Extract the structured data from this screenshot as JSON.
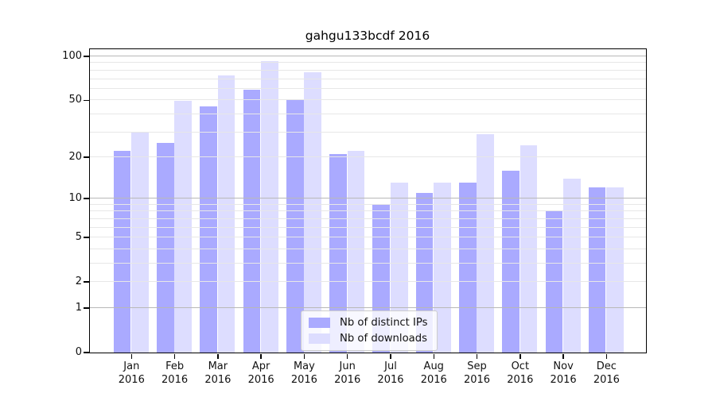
{
  "chart_data": {
    "type": "bar",
    "title": "gahgu133bcdf 2016",
    "x": {
      "months": [
        "Jan",
        "Feb",
        "Mar",
        "Apr",
        "May",
        "Jun",
        "Jul",
        "Aug",
        "Sep",
        "Oct",
        "Nov",
        "Dec"
      ],
      "year": "2016",
      "categories": [
        "Jan 2016",
        "Feb 2016",
        "Mar 2016",
        "Apr 2016",
        "May 2016",
        "Jun 2016",
        "Jul 2016",
        "Aug 2016",
        "Sep 2016",
        "Oct 2016",
        "Nov 2016",
        "Dec 2016"
      ]
    },
    "series": [
      {
        "name": "Nb of distinct IPs",
        "color": "#aaaaff",
        "values": [
          22,
          25,
          45,
          59,
          50,
          21,
          9,
          11,
          13,
          16,
          8,
          12
        ]
      },
      {
        "name": "Nb of downloads",
        "color": "#ddddff",
        "values": [
          30,
          49,
          74,
          92,
          77,
          22,
          13,
          13,
          29,
          24,
          14,
          12
        ]
      }
    ],
    "y_axis": {
      "scale": "log10(1+x)",
      "tick_values": [
        0,
        1,
        2,
        5,
        10,
        20,
        50,
        100
      ],
      "ylim": [
        0,
        112
      ],
      "major_gridlines": [
        1,
        10,
        100
      ],
      "minor_gridlines": [
        2,
        3,
        4,
        5,
        6,
        7,
        8,
        9,
        20,
        30,
        40,
        50,
        60,
        70,
        80,
        90
      ]
    },
    "legend": {
      "position": "bottom-center",
      "entries": [
        "Nb of distinct IPs",
        "Nb of downloads"
      ]
    },
    "colors": {
      "bar_distinct_ips": "#aaaaff",
      "bar_downloads": "#ddddff",
      "major_grid": "#b8b8b8",
      "minor_grid": "#e7e7e7",
      "spine": "#000000",
      "text": "#111111"
    },
    "grid": "on"
  }
}
